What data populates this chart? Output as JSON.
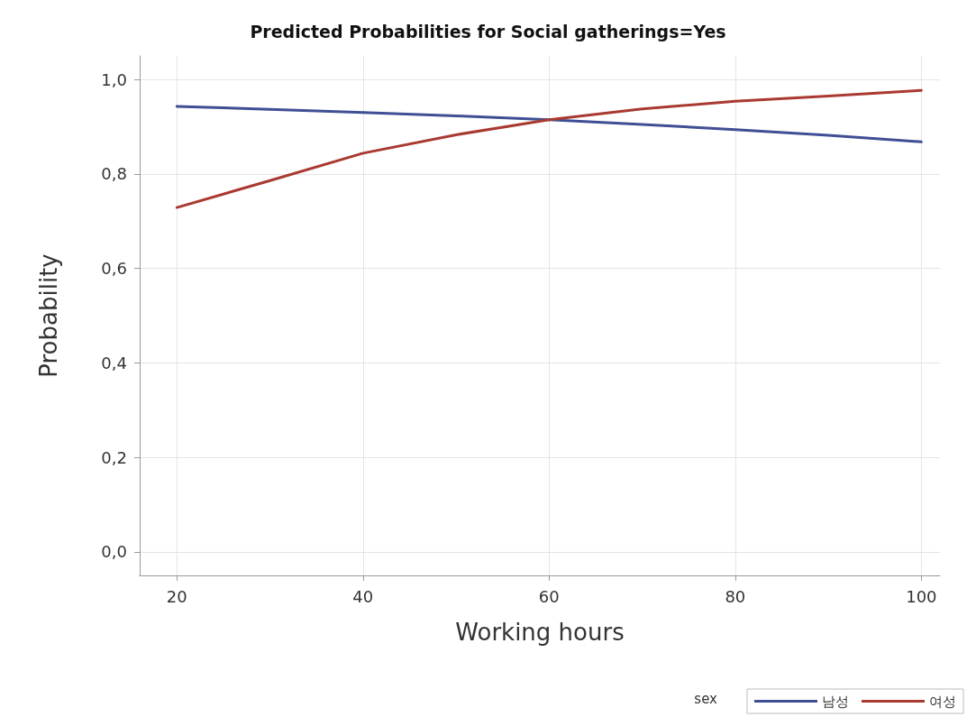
{
  "chart_data": {
    "type": "line",
    "title": "Predicted Probabilities for Social gatherings=Yes",
    "xlabel": "Working hours",
    "ylabel": "Probability",
    "legend_title": "sex",
    "x": [
      20,
      30,
      40,
      50,
      60,
      70,
      80,
      90,
      100
    ],
    "series": [
      {
        "name": "남성",
        "color": "#3f4f95",
        "values": [
          0.943,
          0.937,
          0.93,
          0.923,
          0.915,
          0.905,
          0.894,
          0.882,
          0.868
        ]
      },
      {
        "name": "여성",
        "color": "#a93a32",
        "values": [
          0.729,
          0.786,
          0.844,
          0.883,
          0.915,
          0.938,
          0.954,
          0.965,
          0.977
        ]
      }
    ],
    "xlim": [
      16,
      102
    ],
    "xticks": [
      20,
      40,
      60,
      80,
      100
    ],
    "ylim": [
      -0.05,
      1.05
    ],
    "yticks": [
      {
        "value": 0,
        "label": "0,0"
      },
      {
        "value": 0.2,
        "label": "0,2"
      },
      {
        "value": 0.4,
        "label": "0,4"
      },
      {
        "value": 0.6,
        "label": "0,6"
      },
      {
        "value": 0.8,
        "label": "0,8"
      },
      {
        "value": 1,
        "label": "1,0"
      }
    ],
    "grid": true,
    "legend": "bottom right",
    "marker": "none",
    "line_style": "solid"
  }
}
